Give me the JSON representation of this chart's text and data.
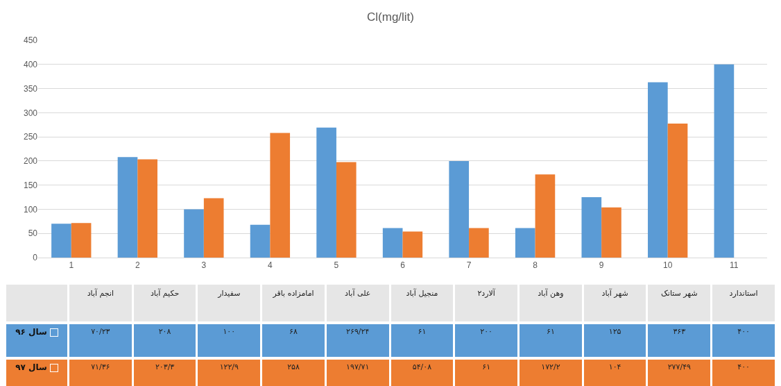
{
  "chart_data": {
    "type": "bar",
    "title": "Cl(mg/lit)",
    "categories": [
      "1",
      "2",
      "3",
      "4",
      "5",
      "6",
      "7",
      "8",
      "9",
      "10",
      "11"
    ],
    "annotations": [
      "انجم آباد",
      "حکیم آباد",
      "سفیدار",
      "امامزاده باقر",
      "علی آباد",
      "منجیل آباد",
      "آلارد۲",
      "وهن آباد",
      "شهر آباد",
      "شهر ستانک",
      "استاندارد"
    ],
    "series": [
      {
        "name": "سال ۹۶",
        "color": "#5b9bd5",
        "values": [
          70.23,
          208,
          100,
          68,
          269.24,
          61,
          200,
          61,
          125,
          363,
          400
        ],
        "value_labels": [
          "۷۰/۲۳",
          "۲۰۸",
          "۱۰۰",
          "۶۸",
          "۲۶۹/۲۴",
          "۶۱",
          "۲۰۰",
          "۶۱",
          "۱۲۵",
          "۳۶۳",
          "۴۰۰"
        ]
      },
      {
        "name": "سال ۹۷",
        "color": "#ed7d31",
        "values": [
          71.36,
          203.3,
          122.9,
          258,
          197.71,
          54.08,
          61,
          172.2,
          104,
          277.49,
          null
        ],
        "value_labels": [
          "۷۱/۳۶",
          "۲۰۳/۳",
          "۱۲۲/۹",
          "۲۵۸",
          "۱۹۷/۷۱",
          "۵۴/۰۸",
          "۶۱",
          "۱۷۲/۲",
          "۱۰۴",
          "۲۷۷/۴۹",
          "۴۰۰"
        ]
      }
    ],
    "ylim": [
      0,
      450
    ],
    "yticks": [
      0,
      50,
      100,
      150,
      200,
      250,
      300,
      350,
      400,
      450
    ],
    "grid": "y",
    "legend": "bottom"
  }
}
